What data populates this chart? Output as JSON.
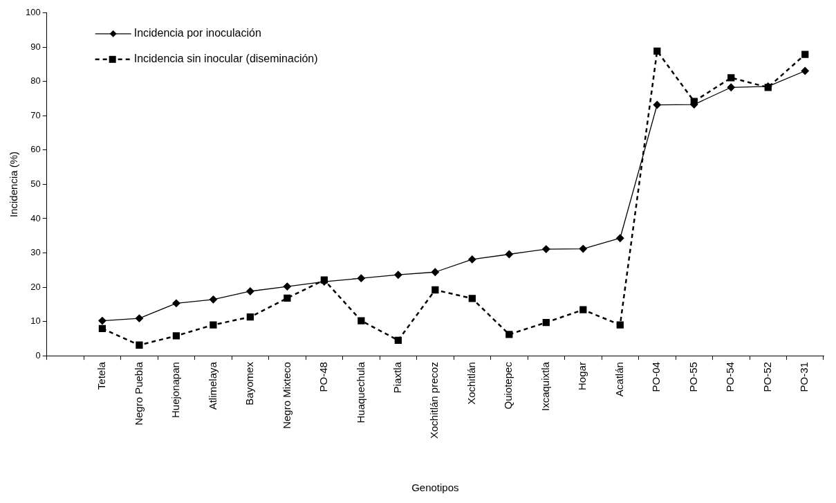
{
  "chart_data": {
    "type": "line",
    "xlabel": "Genotipos",
    "ylabel": "Incidencia (%)",
    "categories": [
      null,
      "Tetela",
      "Negro Puebla",
      "Huejonapan",
      "Atlimelaya",
      "Bayomex",
      "Negro Mixteco",
      "PO-48",
      "Huaquechula",
      "Piaxtla",
      "Xochitlán precoz",
      "Xochitlán",
      "Quiotepec",
      "Ixcaquixtla",
      "Hogar",
      "Acatlán",
      "PO-04",
      "PO-55",
      "PO-54",
      "PO-52",
      "PO-31"
    ],
    "series": [
      {
        "name": "Incidencia por inoculación",
        "color": "#000000",
        "marker": "diamond",
        "line_style": "solid",
        "values": [
          null,
          10.2,
          10.9,
          15.3,
          16.4,
          18.8,
          20.2,
          21.6,
          22.6,
          23.6,
          24.4,
          28.1,
          29.6,
          31.1,
          31.2,
          34.3,
          73.2,
          73.3,
          78.3,
          78.6,
          83.1
        ]
      },
      {
        "name": "Incidencia sin inocular (diseminación)",
        "color": "#000000",
        "marker": "square",
        "line_style": "dashed",
        "values": [
          null,
          7.9,
          3.1,
          5.8,
          9.0,
          11.3,
          16.8,
          22.1,
          10.2,
          4.5,
          19.2,
          16.7,
          6.2,
          9.7,
          13.4,
          9.0,
          88.9,
          74.2,
          81.1,
          78.3,
          87.9
        ]
      }
    ],
    "ylim": [
      0,
      100
    ],
    "yticks": [
      0,
      10,
      20,
      30,
      40,
      50,
      60,
      70,
      80,
      90,
      100
    ],
    "grid": false,
    "legend": "top left"
  }
}
